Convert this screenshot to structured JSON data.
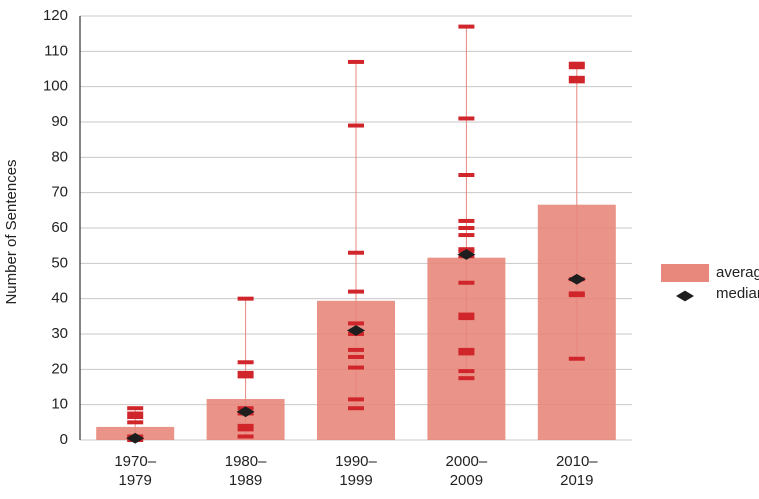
{
  "chart_data": {
    "type": "bar",
    "y_label": "Number of Sentences",
    "categories": [
      "1970–1979",
      "1980–1989",
      "1990–1999",
      "2000–2009",
      "2010–2019"
    ],
    "series": [
      {
        "name": "average",
        "color": "#e8877c",
        "values": [
          3.7,
          11.6,
          39.4,
          51.6,
          66.6
        ]
      },
      {
        "name": "median",
        "color": "#1e1e1e",
        "values": [
          0.5,
          8,
          31,
          52.5,
          45.5
        ]
      }
    ],
    "points": [
      [
        0,
        0.5,
        1,
        5,
        6.5,
        7.5,
        9
      ],
      [
        1,
        3,
        4,
        7.5,
        9,
        18,
        19,
        22,
        40
      ],
      [
        9,
        11.5,
        20.5,
        23.5,
        25.5,
        30,
        33,
        42,
        53,
        89,
        107
      ],
      [
        17.5,
        19.5,
        24.5,
        25.5,
        34.5,
        35.5,
        44.5,
        52,
        53.5,
        54,
        58,
        60,
        62,
        75,
        91,
        117
      ],
      [
        23,
        41,
        41.5,
        45.5,
        101.5,
        102.5,
        105.5,
        106.5
      ]
    ],
    "points_color": "#d0262b",
    "ranges": [
      [
        0,
        9
      ],
      [
        1,
        40
      ],
      [
        9,
        107
      ],
      [
        17.5,
        117
      ],
      [
        23,
        106.5
      ]
    ],
    "range_color": "#e8877c",
    "ylim": [
      0,
      120
    ],
    "yticks": [
      0,
      10,
      20,
      30,
      40,
      50,
      60,
      70,
      80,
      90,
      100,
      110,
      120
    ],
    "grid": true
  }
}
